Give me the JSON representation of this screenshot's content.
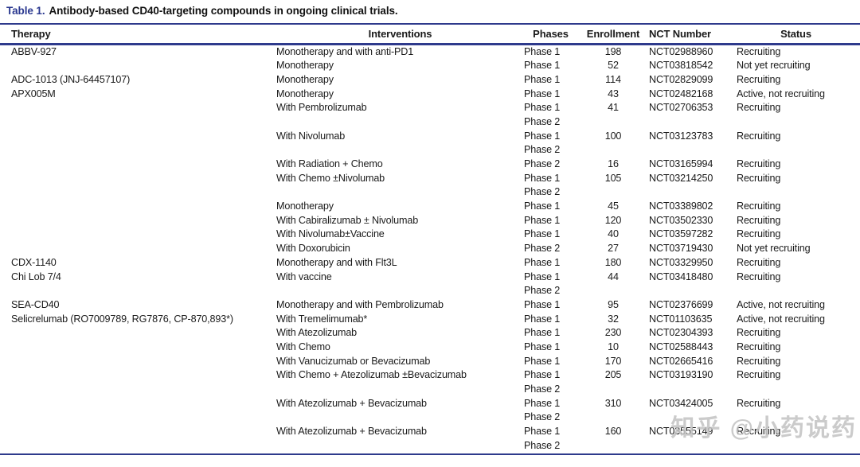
{
  "title": {
    "label": "Table 1.",
    "text": "Antibody-based CD40-targeting compounds in ongoing clinical trials."
  },
  "columns": [
    "Therapy",
    "Interventions",
    "Phases",
    "Enrollment",
    "NCT Number",
    "Status"
  ],
  "rows": [
    {
      "therapy": "ABBV-927",
      "intervention": "Monotherapy and with anti-PD1",
      "phases": "Phase 1",
      "enrollment": "198",
      "nct": "NCT02988960",
      "status": "Recruiting"
    },
    {
      "therapy": "",
      "intervention": "Monotherapy",
      "phases": "Phase 1",
      "enrollment": "52",
      "nct": "NCT03818542",
      "status": "Not yet recruiting"
    },
    {
      "therapy": "ADC-1013 (JNJ-64457107)",
      "intervention": "Monotherapy",
      "phases": "Phase 1",
      "enrollment": "114",
      "nct": "NCT02829099",
      "status": "Recruiting"
    },
    {
      "therapy": "APX005M",
      "intervention": "Monotherapy",
      "phases": "Phase 1",
      "enrollment": "43",
      "nct": "NCT02482168",
      "status": "Active, not recruiting"
    },
    {
      "therapy": "",
      "intervention": "With Pembrolizumab",
      "phases": "Phase 1",
      "enrollment": "41",
      "nct": "NCT02706353",
      "status": "Recruiting"
    },
    {
      "therapy": "",
      "intervention": "",
      "phases": "Phase 2",
      "enrollment": "",
      "nct": "",
      "status": ""
    },
    {
      "therapy": "",
      "intervention": "With Nivolumab",
      "phases": "Phase 1",
      "enrollment": "100",
      "nct": "NCT03123783",
      "status": "Recruiting"
    },
    {
      "therapy": "",
      "intervention": "",
      "phases": "Phase 2",
      "enrollment": "",
      "nct": "",
      "status": ""
    },
    {
      "therapy": "",
      "intervention": "With Radiation + Chemo",
      "phases": "Phase 2",
      "enrollment": "16",
      "nct": "NCT03165994",
      "status": "Recruiting"
    },
    {
      "therapy": "",
      "intervention": "With Chemo ±Nivolumab",
      "phases": "Phase 1",
      "enrollment": "105",
      "nct": "NCT03214250",
      "status": "Recruiting"
    },
    {
      "therapy": "",
      "intervention": "",
      "phases": "Phase 2",
      "enrollment": "",
      "nct": "",
      "status": ""
    },
    {
      "therapy": "",
      "intervention": "Monotherapy",
      "phases": "Phase 1",
      "enrollment": "45",
      "nct": "NCT03389802",
      "status": "Recruiting"
    },
    {
      "therapy": "",
      "intervention": "With Cabiralizumab ± Nivolumab",
      "phases": "Phase 1",
      "enrollment": "120",
      "nct": "NCT03502330",
      "status": "Recruiting"
    },
    {
      "therapy": "",
      "intervention": "With Nivolumab±Vaccine",
      "phases": "Phase 1",
      "enrollment": "40",
      "nct": "NCT03597282",
      "status": "Recruiting"
    },
    {
      "therapy": "",
      "intervention": "With Doxorubicin",
      "phases": "Phase 2",
      "enrollment": "27",
      "nct": "NCT03719430",
      "status": "Not yet recruiting"
    },
    {
      "therapy": "CDX-1140",
      "intervention": "Monotherapy and with Flt3L",
      "phases": "Phase 1",
      "enrollment": "180",
      "nct": "NCT03329950",
      "status": "Recruiting"
    },
    {
      "therapy": "Chi Lob 7/4",
      "intervention": "With vaccine",
      "phases": "Phase 1",
      "enrollment": "44",
      "nct": "NCT03418480",
      "status": "Recruiting"
    },
    {
      "therapy": "",
      "intervention": "",
      "phases": "Phase 2",
      "enrollment": "",
      "nct": "",
      "status": ""
    },
    {
      "therapy": "SEA-CD40",
      "intervention": "Monotherapy and with Pembrolizumab",
      "phases": "Phase 1",
      "enrollment": "95",
      "nct": "NCT02376699",
      "status": "Active, not recruiting"
    },
    {
      "therapy": "Selicrelumab (RO7009789, RG7876, CP-870,893*)",
      "intervention": "With Tremelimumab*",
      "phases": "Phase 1",
      "enrollment": "32",
      "nct": "NCT01103635",
      "status": "Active, not recruiting"
    },
    {
      "therapy": "",
      "intervention": "With Atezolizumab",
      "phases": "Phase 1",
      "enrollment": "230",
      "nct": "NCT02304393",
      "status": "Recruiting"
    },
    {
      "therapy": "",
      "intervention": "With Chemo",
      "phases": "Phase 1",
      "enrollment": "10",
      "nct": "NCT02588443",
      "status": "Recruiting"
    },
    {
      "therapy": "",
      "intervention": "With Vanucizumab or Bevacizumab",
      "phases": "Phase 1",
      "enrollment": "170",
      "nct": "NCT02665416",
      "status": "Recruiting"
    },
    {
      "therapy": "",
      "intervention": "With Chemo + Atezolizumab ±Bevacizumab",
      "phases": "Phase 1",
      "enrollment": "205",
      "nct": "NCT03193190",
      "status": "Recruiting"
    },
    {
      "therapy": "",
      "intervention": "",
      "phases": "Phase 2",
      "enrollment": "",
      "nct": "",
      "status": ""
    },
    {
      "therapy": "",
      "intervention": "With Atezolizumab + Bevacizumab",
      "phases": "Phase 1",
      "enrollment": "310",
      "nct": "NCT03424005",
      "status": "Recruiting"
    },
    {
      "therapy": "",
      "intervention": "",
      "phases": "Phase 2",
      "enrollment": "",
      "nct": "",
      "status": ""
    },
    {
      "therapy": "",
      "intervention": "With Atezolizumab + Bevacizumab",
      "phases": "Phase 1",
      "enrollment": "160",
      "nct": "NCT03555149",
      "status": "Recruiting"
    },
    {
      "therapy": "",
      "intervention": "",
      "phases": "Phase 2",
      "enrollment": "",
      "nct": "",
      "status": ""
    }
  ],
  "watermark": "知乎 @小药说药",
  "colors": {
    "accent": "#2b3990",
    "rule": "#2e3a8c",
    "text": "#1a1a1a",
    "watermark": "#c3c3c3"
  }
}
